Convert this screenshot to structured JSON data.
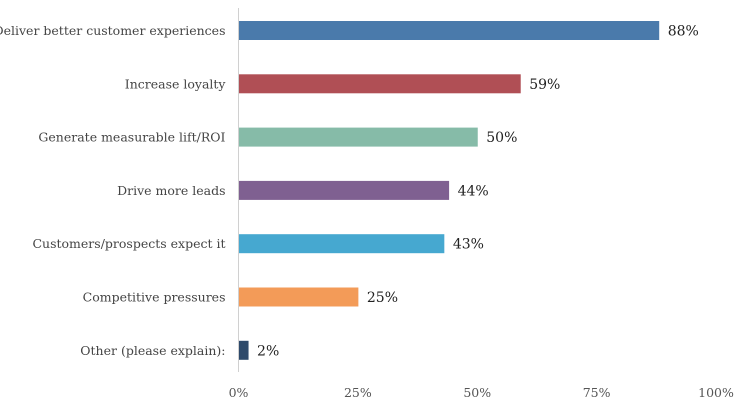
{
  "chart_data": {
    "type": "bar",
    "orientation": "horizontal",
    "categories": [
      "Deliver better customer experiences",
      "Increase loyalty",
      "Generate measurable lift/ROI",
      "Drive more leads",
      "Customers/prospects expect it",
      "Competitive pressures",
      "Other (please explain):"
    ],
    "values": [
      88,
      59,
      50,
      44,
      43,
      25,
      2
    ],
    "data_labels": [
      "88%",
      "59%",
      "50%",
      "44%",
      "43%",
      "25%",
      "2%"
    ],
    "colors": [
      "#4a7aab",
      "#b04f55",
      "#86bba8",
      "#7f6091",
      "#46a8d0",
      "#f39b58",
      "#2e4a6b"
    ],
    "xlim": [
      0,
      100
    ],
    "x_ticks": [
      0,
      25,
      50,
      75,
      100
    ],
    "x_tick_labels": [
      "0%",
      "25%",
      "50%",
      "75%",
      "100%"
    ],
    "title": "",
    "xlabel": "",
    "ylabel": "",
    "grid": false,
    "legend": "none"
  }
}
